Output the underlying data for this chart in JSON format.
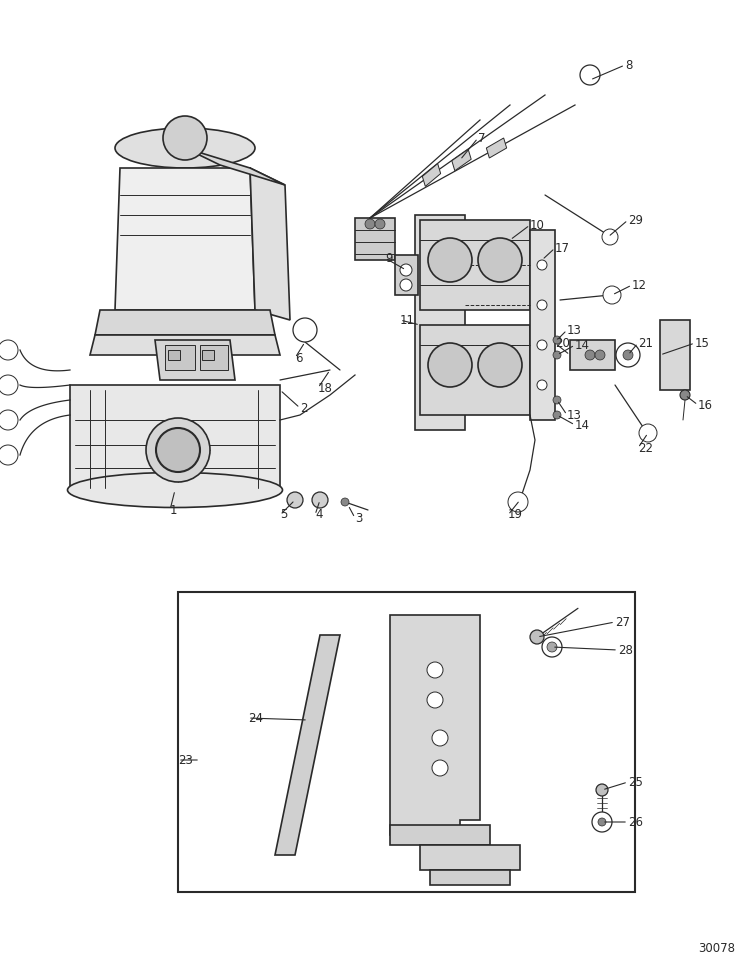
{
  "bg_color": "#ffffff",
  "lc": "#2a2a2a",
  "fig_width": 7.5,
  "fig_height": 9.63,
  "dpi": 100,
  "part_number": "30078",
  "label_fs": 8.5
}
